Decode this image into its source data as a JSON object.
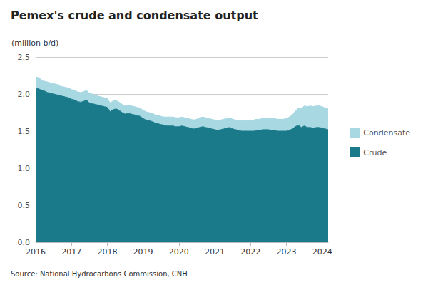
{
  "chart_data": {
    "type": "area",
    "title": "Pemex's crude and condensate output",
    "ylabel": "(million b/d)",
    "source": "Source: National Hydrocarbons Commission, CNH",
    "stacked": true,
    "grid": true,
    "legend": "right",
    "categories": [
      "2016",
      null,
      null,
      null,
      null,
      null,
      null,
      null,
      null,
      null,
      null,
      null,
      "2017",
      null,
      null,
      null,
      null,
      null,
      null,
      null,
      null,
      null,
      null,
      null,
      "2018",
      null,
      null,
      null,
      null,
      null,
      null,
      null,
      null,
      null,
      null,
      null,
      "2019",
      null,
      null,
      null,
      null,
      null,
      null,
      null,
      null,
      null,
      null,
      null,
      "2020",
      null,
      null,
      null,
      null,
      null,
      null,
      null,
      null,
      null,
      null,
      null,
      "2021",
      null,
      null,
      null,
      null,
      null,
      null,
      null,
      null,
      null,
      null,
      null,
      "2022",
      null,
      null,
      null,
      null,
      null,
      null,
      null,
      null,
      null,
      null,
      null,
      "2023",
      null,
      null,
      null,
      null,
      null,
      null,
      null,
      null,
      null,
      null,
      null,
      "2024",
      null,
      null
    ],
    "ylim": [
      0,
      2.5
    ],
    "yticks": [
      {
        "value": 0.0,
        "label": "0.0"
      },
      0.5,
      {
        "value": 1.0,
        "label": "1.0"
      },
      1.5,
      {
        "value": 2.0,
        "label": "2.0"
      },
      2.5
    ],
    "series": [
      {
        "name": "Crude",
        "color": "#1a7a8a",
        "values": [
          2.08,
          2.07,
          2.05,
          2.04,
          2.02,
          2.01,
          2.0,
          1.99,
          1.98,
          1.97,
          1.96,
          1.95,
          1.93,
          1.92,
          1.9,
          1.89,
          1.9,
          1.92,
          1.88,
          1.87,
          1.86,
          1.85,
          1.84,
          1.83,
          1.82,
          1.76,
          1.79,
          1.8,
          1.78,
          1.75,
          1.73,
          1.74,
          1.73,
          1.72,
          1.71,
          1.7,
          1.67,
          1.65,
          1.64,
          1.63,
          1.61,
          1.6,
          1.59,
          1.58,
          1.57,
          1.57,
          1.57,
          1.56,
          1.56,
          1.57,
          1.56,
          1.55,
          1.54,
          1.53,
          1.54,
          1.55,
          1.56,
          1.55,
          1.54,
          1.53,
          1.52,
          1.51,
          1.52,
          1.53,
          1.54,
          1.55,
          1.53,
          1.52,
          1.51,
          1.5,
          1.5,
          1.5,
          1.5,
          1.5,
          1.51,
          1.51,
          1.52,
          1.52,
          1.52,
          1.51,
          1.51,
          1.5,
          1.5,
          1.5,
          1.5,
          1.51,
          1.53,
          1.56,
          1.58,
          1.55,
          1.57,
          1.55,
          1.55,
          1.54,
          1.55,
          1.55,
          1.54,
          1.53,
          1.52
        ]
      },
      {
        "name": "Condensate",
        "color": "#a8d8e2",
        "values": [
          0.15,
          0.15,
          0.14,
          0.14,
          0.14,
          0.14,
          0.14,
          0.14,
          0.14,
          0.13,
          0.13,
          0.13,
          0.13,
          0.13,
          0.13,
          0.13,
          0.13,
          0.13,
          0.13,
          0.13,
          0.12,
          0.12,
          0.12,
          0.12,
          0.12,
          0.12,
          0.12,
          0.11,
          0.11,
          0.11,
          0.11,
          0.11,
          0.11,
          0.11,
          0.11,
          0.11,
          0.11,
          0.11,
          0.11,
          0.11,
          0.11,
          0.11,
          0.11,
          0.11,
          0.12,
          0.12,
          0.12,
          0.12,
          0.12,
          0.12,
          0.12,
          0.12,
          0.12,
          0.12,
          0.12,
          0.13,
          0.13,
          0.13,
          0.13,
          0.13,
          0.13,
          0.13,
          0.13,
          0.13,
          0.13,
          0.13,
          0.13,
          0.13,
          0.13,
          0.14,
          0.14,
          0.14,
          0.14,
          0.15,
          0.15,
          0.15,
          0.15,
          0.15,
          0.15,
          0.16,
          0.16,
          0.16,
          0.16,
          0.16,
          0.17,
          0.18,
          0.19,
          0.21,
          0.23,
          0.25,
          0.27,
          0.28,
          0.29,
          0.29,
          0.29,
          0.29,
          0.29,
          0.28,
          0.28
        ]
      }
    ]
  }
}
